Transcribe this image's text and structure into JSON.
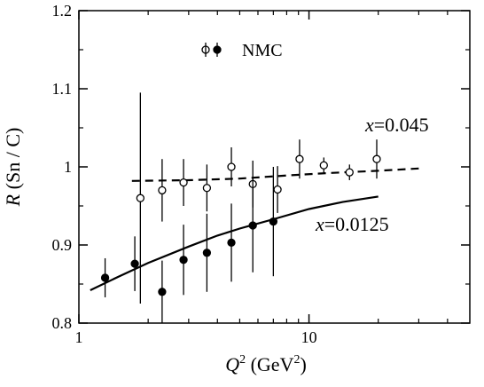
{
  "chart_data": {
    "type": "scatter",
    "title": "",
    "xlabel": {
      "var": "Q",
      "sup": "2",
      "unit_open": " (GeV",
      "unit_sup": "2",
      "unit_close": ")"
    },
    "ylabel": {
      "var": "R",
      "rest": " (Sn / C)"
    },
    "x_scale": "log",
    "xlim": [
      1,
      50
    ],
    "ylim": [
      0.8,
      1.2
    ],
    "x_ticks": [
      1,
      10
    ],
    "x_tick_labels": [
      "1",
      "10"
    ],
    "y_ticks": [
      0.8,
      0.9,
      1.0,
      1.1,
      1.2
    ],
    "y_tick_labels": [
      "0.8",
      "0.9",
      "1",
      "1.1",
      "1.2"
    ],
    "legend": {
      "label": "NMC",
      "position": "top-left"
    },
    "series": [
      {
        "name": "x=0.045",
        "marker": "open-circle",
        "points": [
          {
            "x": 1.85,
            "y": 0.96,
            "err": 0.135
          },
          {
            "x": 2.3,
            "y": 0.97,
            "err": 0.04
          },
          {
            "x": 2.85,
            "y": 0.98,
            "err": 0.03
          },
          {
            "x": 3.6,
            "y": 0.973,
            "err": 0.03
          },
          {
            "x": 4.6,
            "y": 1.0,
            "err": 0.025
          },
          {
            "x": 5.7,
            "y": 0.978,
            "err": 0.03
          },
          {
            "x": 7.3,
            "y": 0.971,
            "err": 0.03
          },
          {
            "x": 9.1,
            "y": 1.01,
            "err": 0.025
          },
          {
            "x": 11.6,
            "y": 1.002,
            "err": 0.01
          },
          {
            "x": 15.0,
            "y": 0.993,
            "err": 0.01
          },
          {
            "x": 19.7,
            "y": 1.01,
            "err": 0.025
          }
        ]
      },
      {
        "name": "x=0.0125",
        "marker": "filled-circle",
        "points": [
          {
            "x": 1.3,
            "y": 0.858,
            "err": 0.025
          },
          {
            "x": 1.75,
            "y": 0.876,
            "err": 0.035
          },
          {
            "x": 2.3,
            "y": 0.84,
            "err": 0.04
          },
          {
            "x": 2.85,
            "y": 0.881,
            "err": 0.045
          },
          {
            "x": 3.6,
            "y": 0.89,
            "err": 0.05
          },
          {
            "x": 4.6,
            "y": 0.903,
            "err": 0.05
          },
          {
            "x": 5.7,
            "y": 0.925,
            "err": 0.06
          },
          {
            "x": 7.0,
            "y": 0.93,
            "err": 0.07
          }
        ]
      }
    ],
    "curves": [
      {
        "label": "x=0.045",
        "style": "dashed",
        "points": [
          [
            1.7,
            0.982
          ],
          [
            3,
            0.983
          ],
          [
            5,
            0.985
          ],
          [
            8,
            0.989
          ],
          [
            12,
            0.992
          ],
          [
            20,
            0.995
          ],
          [
            30,
            0.998
          ]
        ]
      },
      {
        "label": "x=0.0125",
        "style": "solid",
        "points": [
          [
            1.12,
            0.842
          ],
          [
            1.5,
            0.86
          ],
          [
            2,
            0.877
          ],
          [
            3,
            0.898
          ],
          [
            4,
            0.912
          ],
          [
            5,
            0.921
          ],
          [
            7,
            0.933
          ],
          [
            10,
            0.946
          ],
          [
            14,
            0.955
          ],
          [
            20,
            0.962
          ]
        ]
      }
    ],
    "annotations": [
      {
        "var": "x",
        "value": "=0.045"
      },
      {
        "var": "x",
        "value": "=0.0125"
      }
    ]
  }
}
